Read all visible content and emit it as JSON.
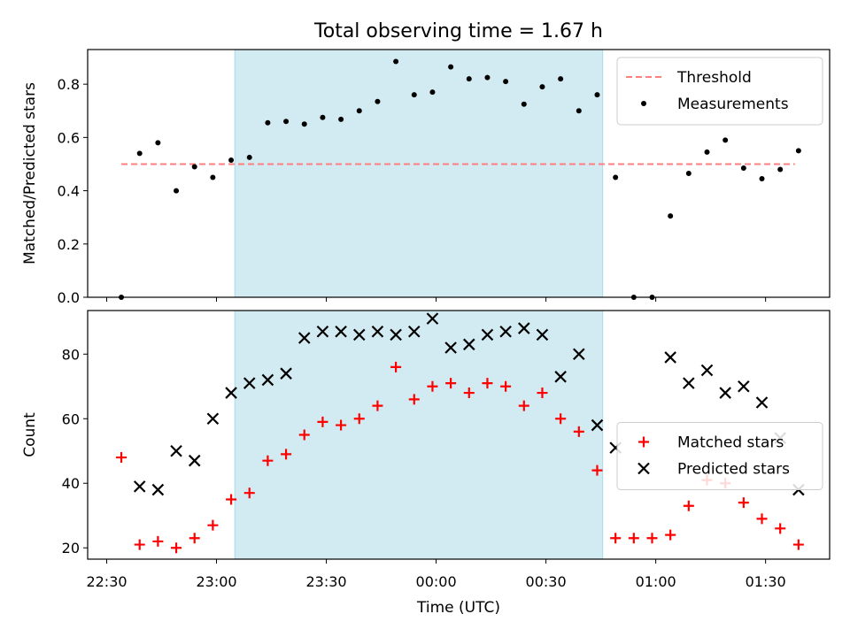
{
  "chart_data": {
    "type": "scatter",
    "title": "Total observing time = 1.67 h",
    "xlabel": "Time (UTC)",
    "x_tick_labels": [
      "22:30",
      "23:00",
      "23:30",
      "00:00",
      "00:30",
      "01:00",
      "01:30"
    ],
    "x_tick_values_min": [
      0,
      30,
      60,
      90,
      120,
      150,
      180
    ],
    "xlim_min": [
      -5.2,
      197.5
    ],
    "shaded_span_min": [
      35,
      135.5
    ],
    "shade_color": "#add8e6",
    "panels": [
      {
        "ylabel": "Matched/Predicted stars",
        "ylim": [
          0,
          0.93
        ],
        "y_ticks": [
          0.0,
          0.2,
          0.4,
          0.6,
          0.8
        ],
        "y_tick_labels": [
          "0.0",
          "0.2",
          "0.4",
          "0.6",
          "0.8"
        ],
        "legend_position": "upper right",
        "threshold": {
          "name": "Threshold",
          "value": 0.5,
          "x_range_min": [
            4,
            188
          ],
          "color": "#ff7f7f",
          "style": "dashed"
        },
        "series": [
          {
            "name": "Measurements",
            "marker": "dot",
            "color": "#000000",
            "x": [
              4,
              9,
              14,
              19,
              24,
              29,
              34,
              39,
              44,
              49,
              54,
              59,
              64,
              69,
              74,
              79,
              84,
              89,
              94,
              99,
              104,
              109,
              114,
              119,
              124,
              129,
              134,
              139,
              144,
              149,
              154,
              159,
              164,
              169,
              174,
              179,
              184,
              189
            ],
            "y": [
              0.0,
              0.54,
              0.58,
              0.4,
              0.49,
              0.45,
              0.515,
              0.525,
              0.655,
              0.66,
              0.65,
              0.675,
              0.668,
              0.7,
              0.735,
              0.885,
              0.76,
              0.77,
              0.865,
              0.82,
              0.825,
              0.81,
              0.725,
              0.79,
              0.82,
              0.7,
              0.76,
              0.45,
              0.0,
              0.0,
              0.305,
              0.465,
              0.545,
              0.59,
              0.485,
              0.445,
              0.48,
              0.55
            ]
          }
        ]
      },
      {
        "ylabel": "Count",
        "ylim": [
          16.5,
          93.5
        ],
        "y_ticks": [
          20,
          40,
          60,
          80
        ],
        "y_tick_labels": [
          "20",
          "40",
          "60",
          "80"
        ],
        "legend_position": "center right",
        "series": [
          {
            "name": "Matched stars",
            "marker": "plus",
            "color": "#ff0000",
            "x": [
              4,
              9,
              14,
              19,
              24,
              29,
              34,
              39,
              44,
              49,
              54,
              59,
              64,
              69,
              74,
              79,
              84,
              89,
              94,
              99,
              104,
              109,
              114,
              119,
              124,
              129,
              134,
              139,
              144,
              149,
              154,
              159,
              164,
              169,
              174,
              179,
              184,
              189
            ],
            "y": [
              48,
              21,
              22,
              20,
              23,
              27,
              35,
              37,
              47,
              49,
              55,
              59,
              58,
              60,
              64,
              76,
              66,
              70,
              71,
              68,
              71,
              70,
              64,
              68,
              60,
              56,
              44,
              23,
              23,
              23,
              24,
              33,
              41,
              40,
              34,
              29,
              26,
              21
            ]
          },
          {
            "name": "Predicted stars",
            "marker": "x",
            "color": "#000000",
            "x": [
              9,
              14,
              19,
              24,
              29,
              34,
              39,
              44,
              49,
              54,
              59,
              64,
              69,
              74,
              79,
              84,
              89,
              94,
              99,
              104,
              109,
              114,
              119,
              124,
              129,
              134,
              139,
              154,
              159,
              164,
              169,
              174,
              179,
              184,
              189
            ],
            "y": [
              39,
              38,
              50,
              47,
              60,
              68,
              71,
              72,
              74,
              85,
              87,
              87,
              86,
              87,
              86,
              87,
              91,
              82,
              83,
              86,
              87,
              88,
              86,
              73,
              80,
              58,
              51,
              79,
              71,
              75,
              68,
              70,
              65,
              54,
              38
            ]
          }
        ]
      }
    ]
  }
}
